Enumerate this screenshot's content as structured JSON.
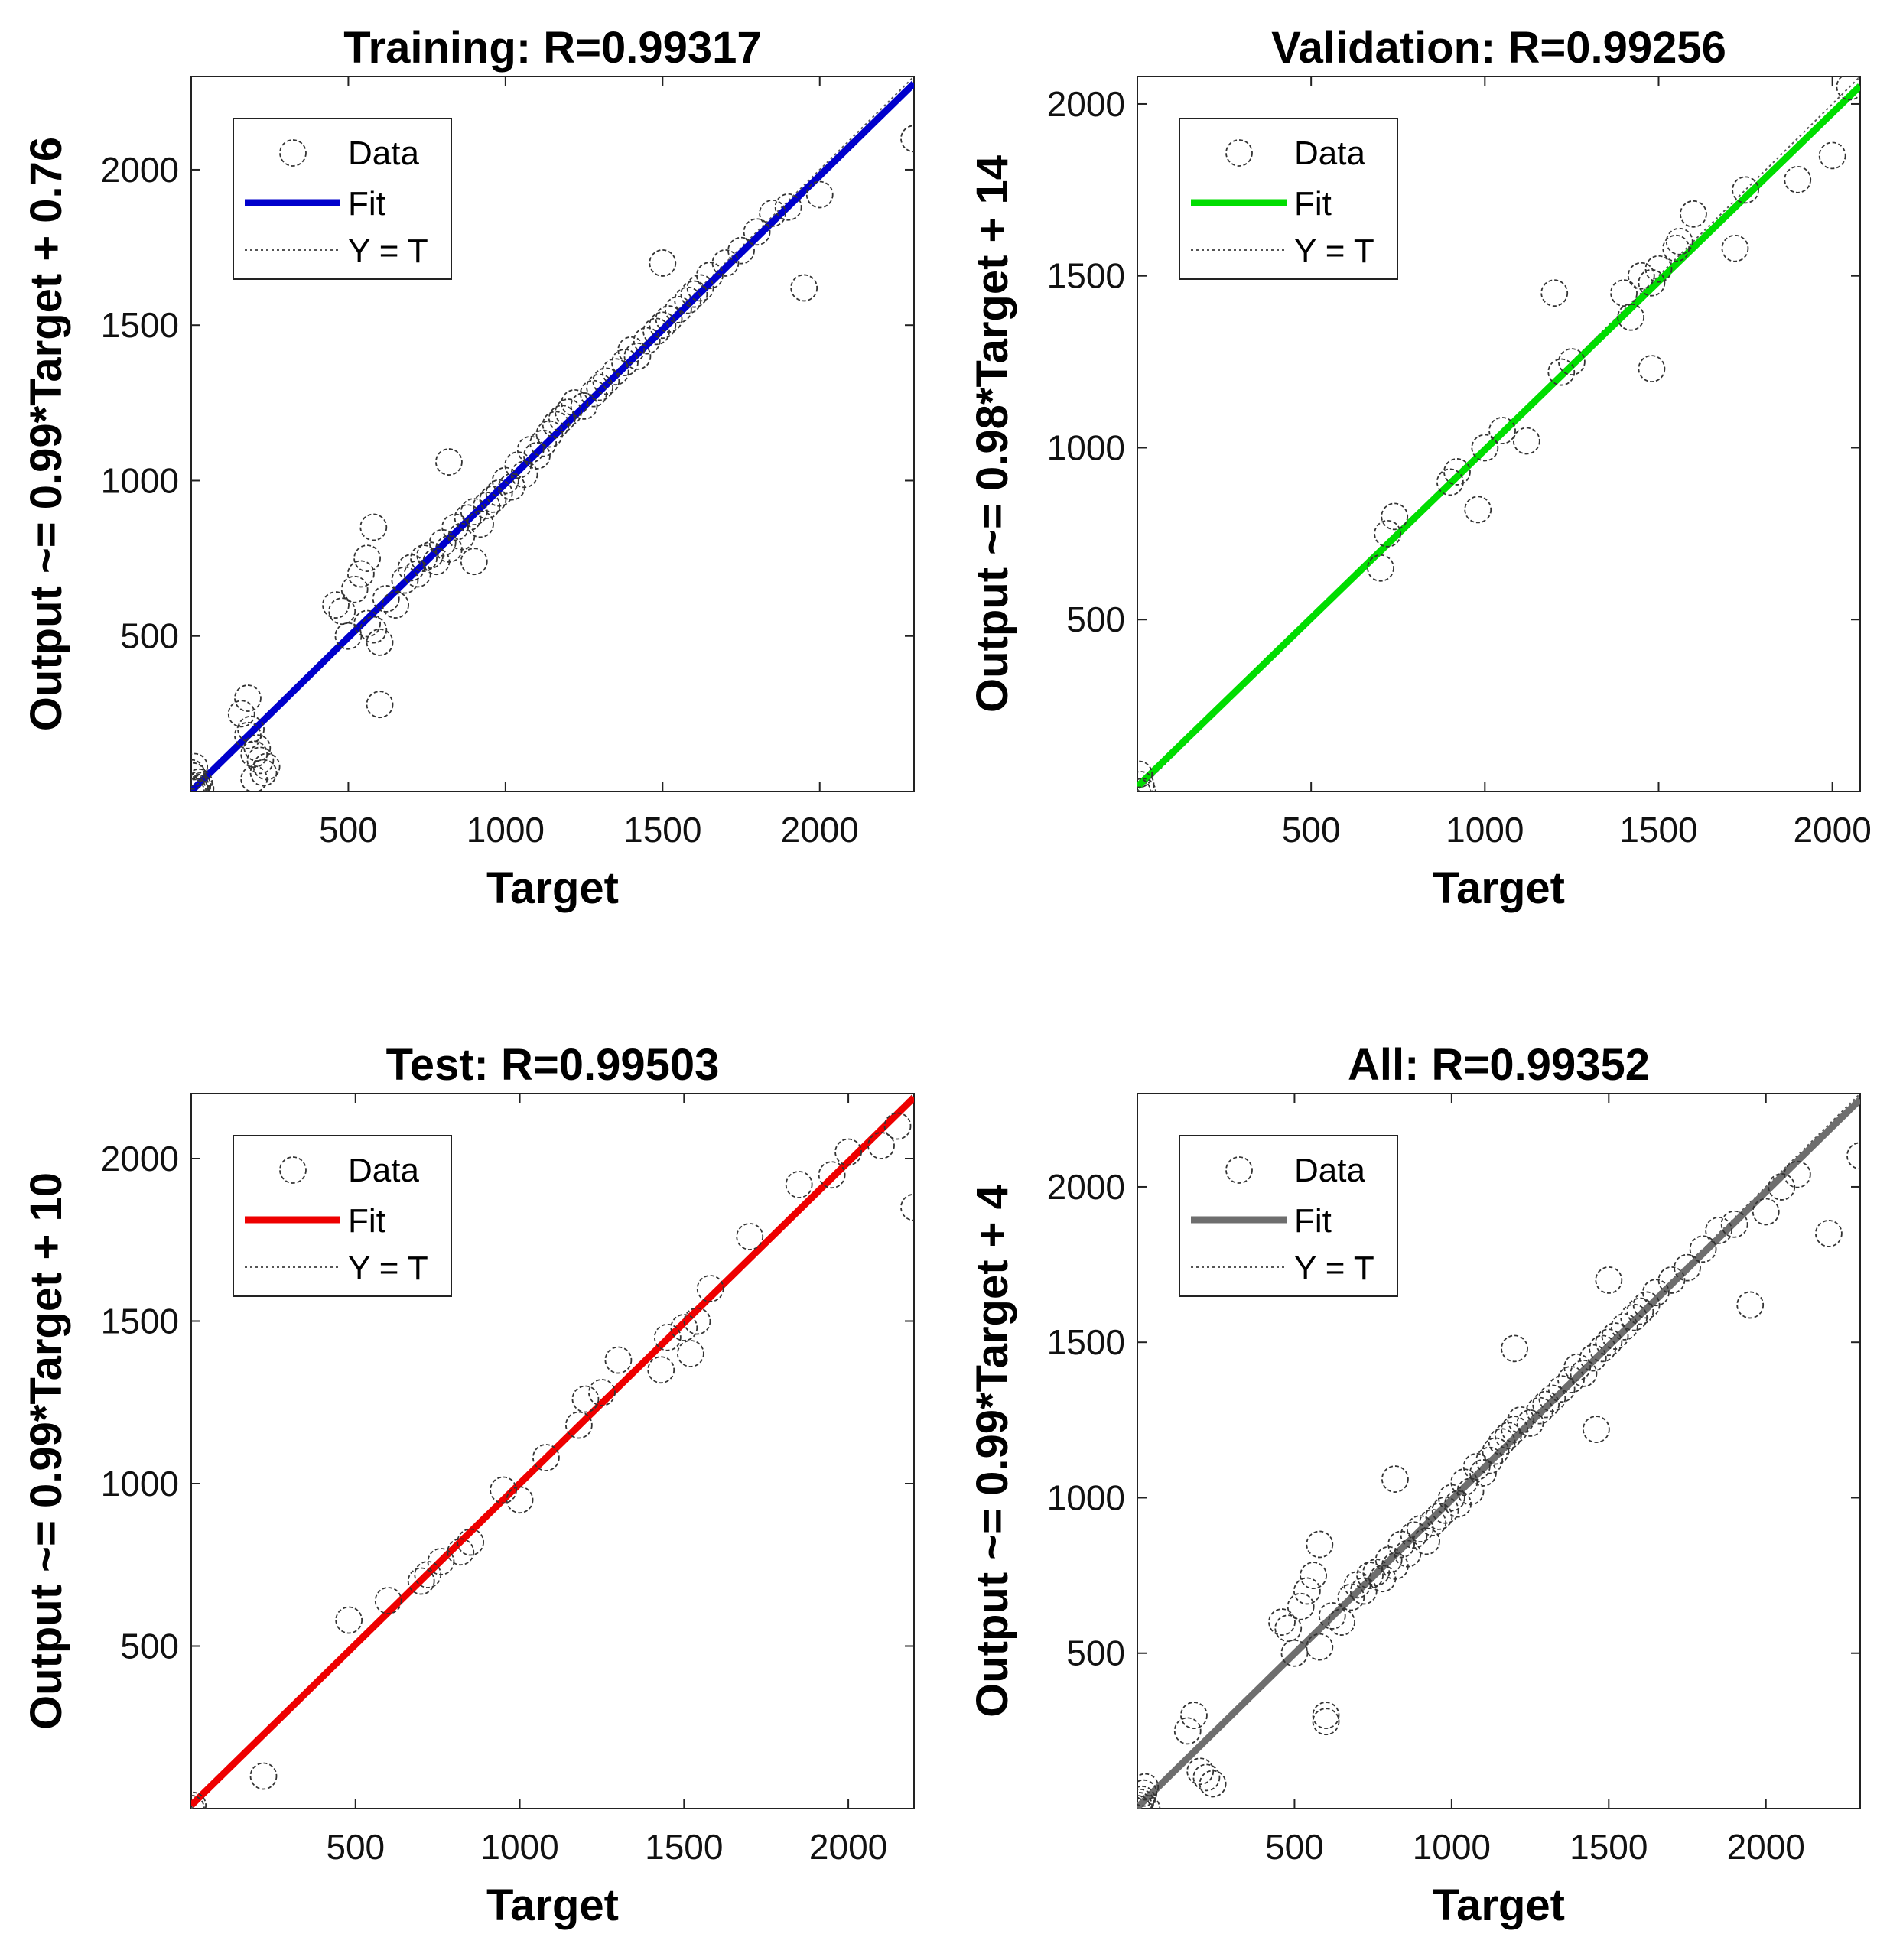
{
  "chart_data": [
    {
      "type": "scatter",
      "title": "Training: R=0.99317",
      "xlabel": "Target",
      "ylabel": "Output ~= 0.99*Target + 0.76",
      "xlim": [
        0,
        2300
      ],
      "ylim": [
        0,
        2300
      ],
      "xticks": [
        500,
        1000,
        1500,
        2000
      ],
      "yticks": [
        500,
        1000,
        1500,
        2000
      ],
      "fit": {
        "slope": 0.99,
        "intercept": 0.76,
        "color": "#0000cc"
      },
      "legend": {
        "position": "top-left",
        "entries": [
          "Data",
          "Fit",
          "Y = T"
        ]
      },
      "x": [
        0,
        5,
        10,
        15,
        20,
        5,
        10,
        0,
        15,
        25,
        30,
        160,
        180,
        200,
        210,
        220,
        230,
        240,
        180,
        200,
        190,
        460,
        480,
        500,
        520,
        540,
        560,
        580,
        600,
        620,
        650,
        680,
        700,
        720,
        740,
        760,
        780,
        800,
        820,
        840,
        860,
        880,
        900,
        920,
        940,
        960,
        980,
        1000,
        1020,
        1040,
        1060,
        1080,
        1100,
        1120,
        1140,
        1160,
        1180,
        1200,
        1220,
        1250,
        1280,
        1300,
        1320,
        1350,
        1380,
        1400,
        1420,
        1450,
        1480,
        1500,
        1520,
        1550,
        1580,
        1600,
        1620,
        1650,
        1700,
        1750,
        1800,
        1850,
        1900,
        1950,
        2000,
        2300,
        580,
        820,
        600,
        1500,
        560,
        900
      ],
      "y": [
        0,
        5,
        10,
        15,
        20,
        50,
        80,
        60,
        0,
        30,
        10,
        250,
        300,
        120,
        140,
        100,
        60,
        80,
        180,
        40,
        200,
        600,
        580,
        500,
        650,
        700,
        750,
        520,
        480,
        620,
        600,
        680,
        720,
        700,
        750,
        760,
        740,
        800,
        780,
        850,
        820,
        880,
        900,
        860,
        920,
        940,
        960,
        1000,
        980,
        1050,
        1020,
        1100,
        1080,
        1120,
        1150,
        1180,
        1200,
        1220,
        1250,
        1240,
        1280,
        1300,
        1320,
        1350,
        1380,
        1420,
        1400,
        1450,
        1480,
        1500,
        1520,
        1550,
        1580,
        1600,
        1620,
        1660,
        1700,
        1740,
        1800,
        1860,
        1880,
        1620,
        1920,
        2100,
        850,
        1060,
        280,
        1700,
        540,
        740
      ]
    },
    {
      "type": "scatter",
      "title": "Validation: R=0.99256",
      "xlabel": "Target",
      "ylabel": "Output ~= 0.98*Target + 14",
      "xlim": [
        0,
        2080
      ],
      "ylim": [
        0,
        2080
      ],
      "xticks": [
        500,
        1000,
        1500,
        2000
      ],
      "yticks": [
        500,
        1000,
        1500,
        2000
      ],
      "fit": {
        "slope": 0.98,
        "intercept": 14,
        "color": "#00dd00"
      },
      "legend": {
        "position": "top-left",
        "entries": [
          "Data",
          "Fit",
          "Y = T"
        ]
      },
      "x": [
        0,
        5,
        10,
        15,
        700,
        720,
        740,
        900,
        920,
        980,
        1000,
        1050,
        1120,
        1200,
        1220,
        1250,
        1400,
        1420,
        1450,
        1480,
        1500,
        1550,
        1560,
        1600,
        1720,
        1750,
        1900,
        2000,
        2050,
        1480
      ],
      "y": [
        0,
        50,
        20,
        0,
        650,
        750,
        800,
        900,
        930,
        820,
        1000,
        1050,
        1020,
        1450,
        1220,
        1250,
        1450,
        1380,
        1500,
        1230,
        1520,
        1580,
        1600,
        1680,
        1580,
        1750,
        1780,
        1850,
        2050,
        1480
      ]
    },
    {
      "type": "scatter",
      "title": "Test: R=0.99503",
      "xlabel": "Target",
      "ylabel": "Output ~= 0.99*Target + 10",
      "xlim": [
        0,
        2200
      ],
      "ylim": [
        0,
        2200
      ],
      "xticks": [
        500,
        1000,
        1500,
        2000
      ],
      "yticks": [
        500,
        1000,
        1500,
        2000
      ],
      "fit": {
        "slope": 0.99,
        "intercept": 10,
        "color": "#ee0000"
      },
      "legend": {
        "position": "top-left",
        "entries": [
          "Data",
          "Fit",
          "Y = T"
        ]
      },
      "x": [
        0,
        5,
        220,
        480,
        600,
        700,
        720,
        760,
        820,
        850,
        950,
        1000,
        1080,
        1180,
        1200,
        1250,
        1300,
        1430,
        1450,
        1500,
        1520,
        1540,
        1580,
        1700,
        1850,
        1950,
        2000,
        2100,
        2200,
        2150
      ],
      "y": [
        0,
        10,
        100,
        580,
        640,
        700,
        720,
        760,
        790,
        820,
        980,
        950,
        1080,
        1180,
        1260,
        1280,
        1380,
        1350,
        1450,
        1480,
        1400,
        1500,
        1600,
        1760,
        1920,
        1950,
        2020,
        2040,
        1850,
        2100
      ]
    },
    {
      "type": "scatter",
      "title": "All: R=0.99352",
      "xlabel": "Target",
      "ylabel": "Output ~= 0.99*Target + 4",
      "xlim": [
        0,
        2300
      ],
      "ylim": [
        0,
        2300
      ],
      "xticks": [
        500,
        1000,
        1500,
        2000
      ],
      "yticks": [
        500,
        1000,
        1500,
        2000
      ],
      "fit": {
        "slope": 0.99,
        "intercept": 4,
        "color": "#6e6e6e"
      },
      "legend": {
        "position": "top-left",
        "entries": [
          "Data",
          "Fit",
          "Y = T"
        ]
      },
      "x": [
        0,
        5,
        10,
        15,
        20,
        25,
        30,
        160,
        180,
        200,
        220,
        240,
        460,
        480,
        500,
        520,
        540,
        560,
        580,
        600,
        620,
        650,
        680,
        700,
        720,
        740,
        760,
        780,
        800,
        820,
        840,
        860,
        880,
        900,
        920,
        940,
        960,
        980,
        1000,
        1020,
        1040,
        1060,
        1080,
        1100,
        1120,
        1140,
        1160,
        1180,
        1200,
        1220,
        1250,
        1280,
        1300,
        1320,
        1350,
        1380,
        1400,
        1420,
        1450,
        1480,
        1500,
        1520,
        1550,
        1580,
        1600,
        1620,
        1650,
        1700,
        1750,
        1800,
        1850,
        1900,
        1950,
        2000,
        2050,
        2100,
        2200,
        2300,
        580,
        600,
        820,
        1500,
        1460,
        1200
      ],
      "y": [
        0,
        10,
        20,
        30,
        50,
        70,
        0,
        250,
        300,
        120,
        100,
        80,
        600,
        580,
        500,
        650,
        700,
        750,
        520,
        280,
        620,
        600,
        680,
        720,
        700,
        750,
        760,
        740,
        800,
        780,
        850,
        820,
        880,
        900,
        860,
        920,
        940,
        960,
        1000,
        980,
        1050,
        1020,
        1100,
        1080,
        1120,
        1150,
        1180,
        1200,
        1220,
        1250,
        1240,
        1280,
        1300,
        1320,
        1350,
        1380,
        1420,
        1400,
        1450,
        1480,
        1500,
        1520,
        1550,
        1580,
        1600,
        1620,
        1660,
        1700,
        1740,
        1800,
        1860,
        1880,
        1620,
        1920,
        2000,
        2040,
        1850,
        2100,
        850,
        300,
        1060,
        1700,
        1220,
        1480
      ]
    }
  ]
}
